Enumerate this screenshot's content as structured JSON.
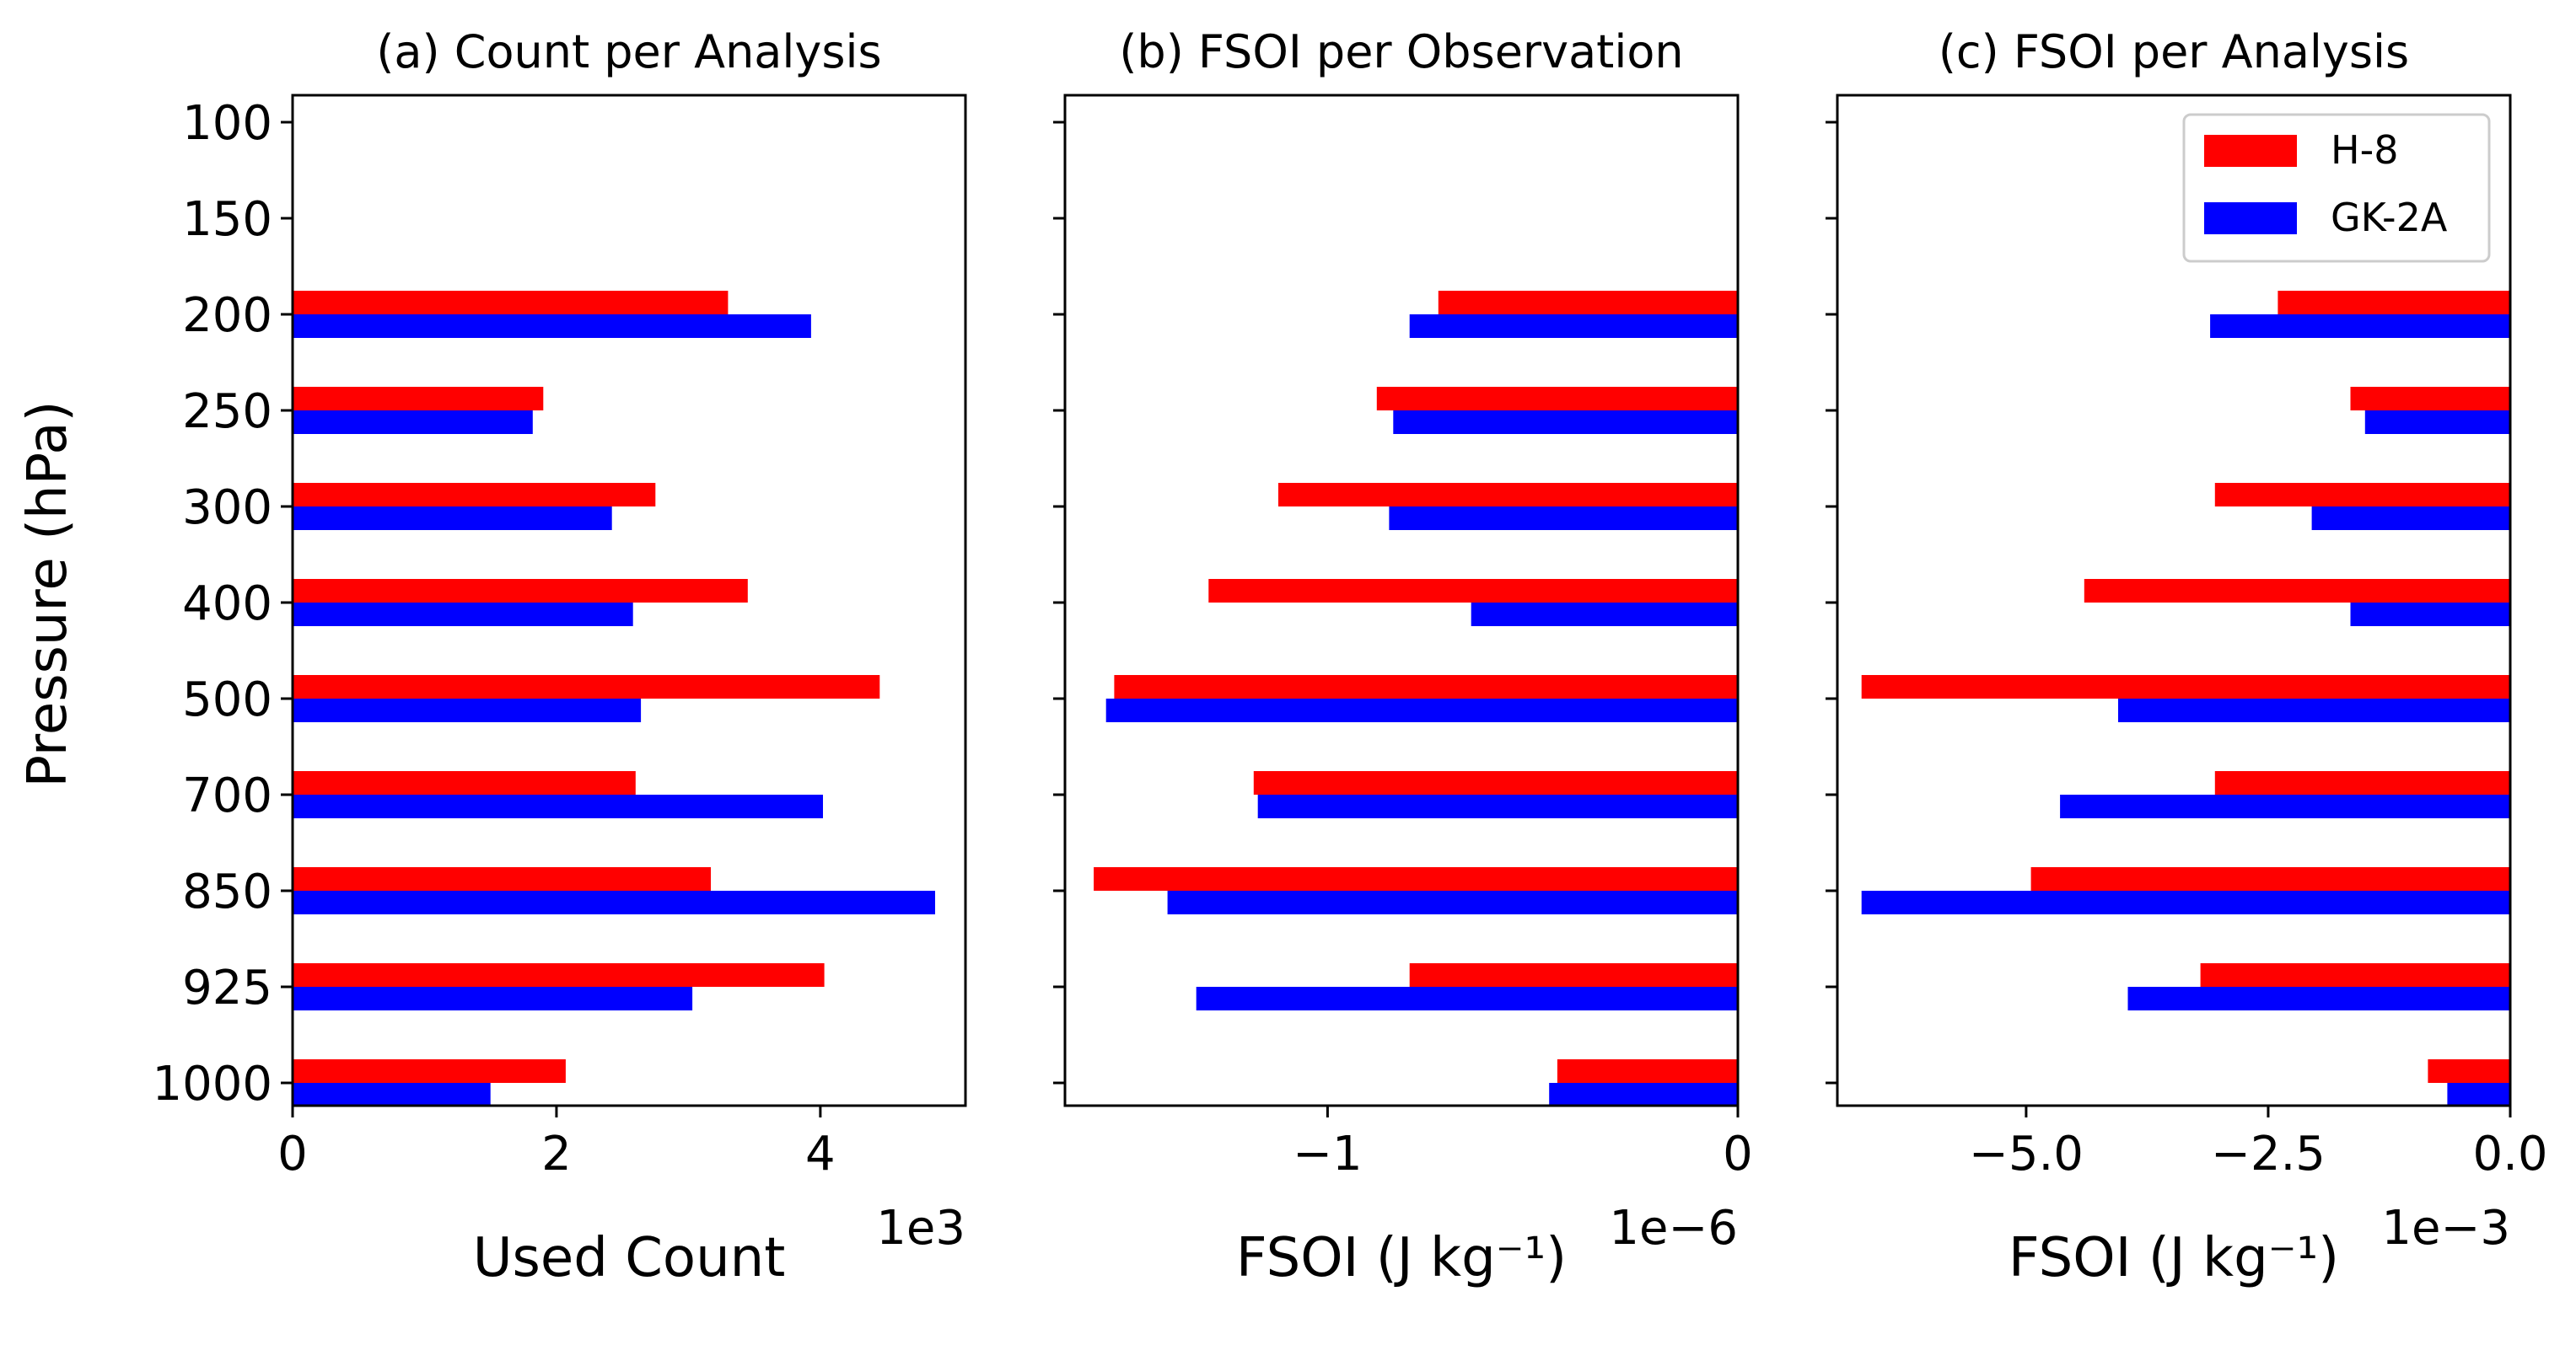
{
  "colors": {
    "h8": "#ff0000",
    "gk2a": "#0000ff",
    "axis": "#000000",
    "legend_border": "#cccccc"
  },
  "shared": {
    "ylabel": "Pressure (hPa)",
    "levels": [
      "100",
      "150",
      "200",
      "250",
      "300",
      "400",
      "500",
      "700",
      "850",
      "925",
      "1000"
    ],
    "legend": {
      "placement": "top-right",
      "entries": [
        "H-8",
        "GK-2A"
      ]
    }
  },
  "chart_data": [
    {
      "type": "bar",
      "orientation": "horizontal",
      "title": "(a) Count per Analysis",
      "xlabel": "Used Count",
      "offset_text": "1e3",
      "categories": [
        "100",
        "150",
        "200",
        "250",
        "300",
        "400",
        "500",
        "700",
        "850",
        "925",
        "1000"
      ],
      "xlim": [
        0,
        5.1
      ],
      "xticks": [
        0,
        2,
        4
      ],
      "xtick_labels": [
        "0",
        "2",
        "4"
      ],
      "series": [
        {
          "name": "H-8",
          "values": [
            0,
            0,
            3.3,
            1.9,
            2.75,
            3.45,
            4.45,
            2.6,
            3.17,
            4.03,
            2.07
          ]
        },
        {
          "name": "GK-2A",
          "values": [
            0,
            0,
            3.93,
            1.82,
            2.42,
            2.58,
            2.64,
            4.02,
            4.87,
            3.03,
            1.5
          ]
        }
      ]
    },
    {
      "type": "bar",
      "orientation": "horizontal",
      "title": "(b) FSOI per Observation",
      "xlabel": "FSOI (J kg⁻¹)",
      "offset_text": "1e−6",
      "categories": [
        "100",
        "150",
        "200",
        "250",
        "300",
        "400",
        "500",
        "700",
        "850",
        "925",
        "1000"
      ],
      "xlim": [
        -1.64,
        0
      ],
      "xticks": [
        -1,
        0
      ],
      "xtick_labels": [
        "−1",
        "0"
      ],
      "series": [
        {
          "name": "H-8",
          "values": [
            0,
            0,
            -0.73,
            -0.88,
            -1.12,
            -1.29,
            -1.52,
            -1.18,
            -1.57,
            -0.8,
            -0.44
          ]
        },
        {
          "name": "GK-2A",
          "values": [
            0,
            0,
            -0.8,
            -0.84,
            -0.85,
            -0.65,
            -1.54,
            -1.17,
            -1.39,
            -1.32,
            -0.46
          ]
        }
      ]
    },
    {
      "type": "bar",
      "orientation": "horizontal",
      "title": "(c) FSOI per Analysis",
      "xlabel": "FSOI (J kg⁻¹)",
      "offset_text": "1e−3",
      "categories": [
        "100",
        "150",
        "200",
        "250",
        "300",
        "400",
        "500",
        "700",
        "850",
        "925",
        "1000"
      ],
      "xlim": [
        -6.95,
        0
      ],
      "xticks": [
        -5.0,
        -2.5,
        0.0
      ],
      "xtick_labels": [
        "−5.0",
        "−2.5",
        "0.0"
      ],
      "series": [
        {
          "name": "H-8",
          "values": [
            0,
            0,
            -2.4,
            -1.65,
            -3.05,
            -4.4,
            -6.7,
            -3.05,
            -4.95,
            -3.2,
            -0.85
          ]
        },
        {
          "name": "GK-2A",
          "values": [
            0,
            0,
            -3.1,
            -1.5,
            -2.05,
            -1.65,
            -4.05,
            -4.65,
            -6.7,
            -3.95,
            -0.65
          ]
        }
      ]
    }
  ]
}
